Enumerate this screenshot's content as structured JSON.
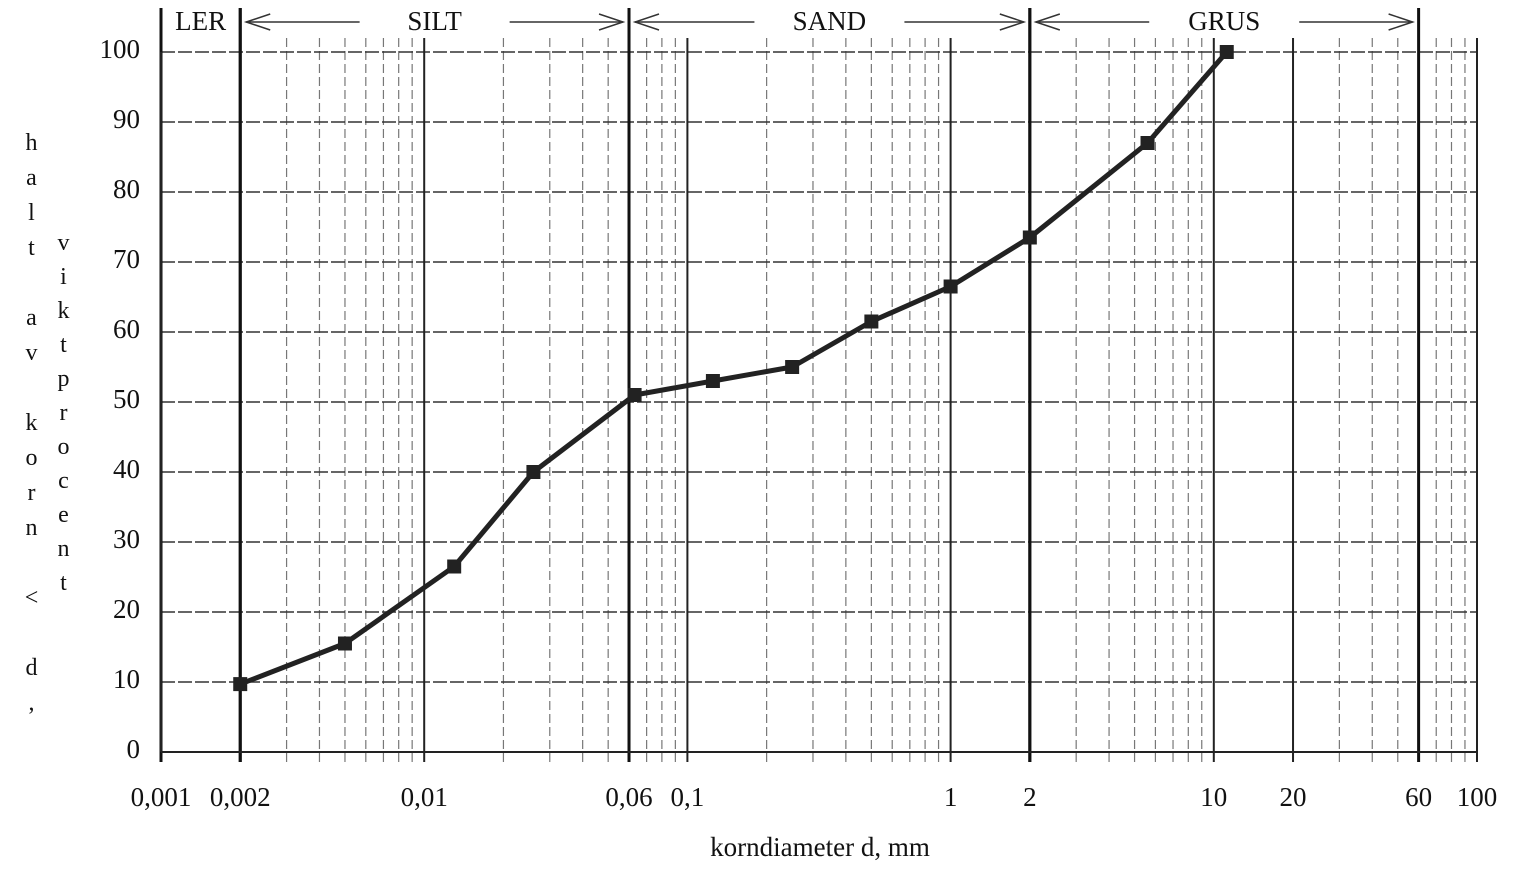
{
  "chart_data": {
    "type": "line",
    "xlabel": "korndiameter d, mm",
    "ylabel": [
      "halt av korn < d,",
      "viktprocent"
    ],
    "xscale": "log",
    "xlim": [
      0.001,
      100
    ],
    "ylim": [
      0,
      100
    ],
    "xticks": [
      {
        "value": 0.001,
        "label": "0,001"
      },
      {
        "value": 0.002,
        "label": "0,002"
      },
      {
        "value": 0.01,
        "label": "0,01"
      },
      {
        "value": 0.06,
        "label": "0,06"
      },
      {
        "value": 0.1,
        "label": "0,1"
      },
      1,
      2,
      10,
      20,
      60,
      100
    ],
    "yticks": [
      0,
      10,
      20,
      30,
      40,
      50,
      60,
      70,
      80,
      90,
      100
    ],
    "grid": true,
    "zones": [
      {
        "label": "LER",
        "range": [
          0.001,
          0.002
        ]
      },
      {
        "label": "SILT",
        "range": [
          0.002,
          0.06
        ]
      },
      {
        "label": "SAND",
        "range": [
          0.06,
          2
        ]
      },
      {
        "label": "GRUS",
        "range": [
          2,
          60
        ]
      }
    ],
    "series": [
      {
        "color": "#222222",
        "x": [
          0.002,
          0.005,
          0.013,
          0.026,
          0.063,
          0.125,
          0.25,
          0.5,
          1,
          2,
          5.6,
          11.2
        ],
        "values": [
          9.7,
          15.5,
          26.5,
          40,
          51,
          53,
          55,
          61.5,
          66.5,
          73.5,
          87,
          100
        ]
      }
    ]
  }
}
